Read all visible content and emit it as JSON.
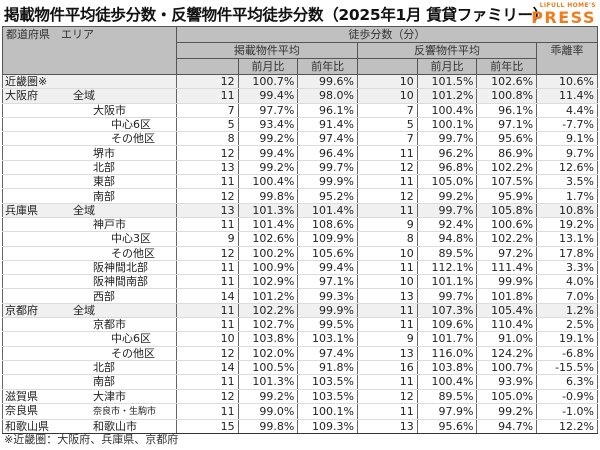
{
  "header": {
    "title": "掲載物件平均徒歩分数・反響物件平均徒歩分数（2025年1月 賃貸ファミリー）",
    "logo_small": "LIFULL HOME'S",
    "logo_big": "PRESS",
    "brand_color": "#f07c1e"
  },
  "table": {
    "headers": {
      "area": "都道府県　エリア",
      "walk_minutes": "徒歩分数（分）",
      "listing_avg": "掲載物件平均",
      "response_avg": "反響物件平均",
      "divergence": "乖離率",
      "mom": "前月比",
      "yoy": "前年比",
      "mom2": "前月比",
      "yoy2": "前年比"
    },
    "rows": [
      {
        "pref": "近畿圏※",
        "area": "",
        "level": 0,
        "l_min": "12",
        "l_mom": "100.7%",
        "l_yoy": "99.6%",
        "r_min": "10",
        "r_mom": "101.5%",
        "r_yoy": "102.6%",
        "div": "10.6%"
      },
      {
        "pref": "大阪府",
        "area": "全域",
        "level": 1,
        "l_min": "11",
        "l_mom": "99.4%",
        "l_yoy": "98.0%",
        "r_min": "10",
        "r_mom": "101.2%",
        "r_yoy": "100.8%",
        "div": "11.4%"
      },
      {
        "pref": "",
        "area": "大阪市",
        "level": 2,
        "l_min": "7",
        "l_mom": "97.7%",
        "l_yoy": "96.1%",
        "r_min": "7",
        "r_mom": "100.4%",
        "r_yoy": "96.1%",
        "div": "4.4%"
      },
      {
        "pref": "",
        "area": "中心6区",
        "level": 3,
        "l_min": "5",
        "l_mom": "93.4%",
        "l_yoy": "91.4%",
        "r_min": "5",
        "r_mom": "100.1%",
        "r_yoy": "97.1%",
        "div": "-7.7%"
      },
      {
        "pref": "",
        "area": "その他区",
        "level": 3,
        "l_min": "8",
        "l_mom": "99.2%",
        "l_yoy": "97.4%",
        "r_min": "7",
        "r_mom": "99.7%",
        "r_yoy": "95.6%",
        "div": "9.1%"
      },
      {
        "pref": "",
        "area": "堺市",
        "level": 2,
        "l_min": "12",
        "l_mom": "99.4%",
        "l_yoy": "96.4%",
        "r_min": "11",
        "r_mom": "96.2%",
        "r_yoy": "86.9%",
        "div": "9.7%"
      },
      {
        "pref": "",
        "area": "北部",
        "level": 2,
        "l_min": "13",
        "l_mom": "99.2%",
        "l_yoy": "99.7%",
        "r_min": "12",
        "r_mom": "96.8%",
        "r_yoy": "102.2%",
        "div": "12.6%"
      },
      {
        "pref": "",
        "area": "東部",
        "level": 2,
        "l_min": "11",
        "l_mom": "100.4%",
        "l_yoy": "99.9%",
        "r_min": "11",
        "r_mom": "105.0%",
        "r_yoy": "107.5%",
        "div": "3.5%"
      },
      {
        "pref": "",
        "area": "南部",
        "level": 2,
        "l_min": "12",
        "l_mom": "99.8%",
        "l_yoy": "95.2%",
        "r_min": "12",
        "r_mom": "99.2%",
        "r_yoy": "95.9%",
        "div": "1.7%"
      },
      {
        "pref": "兵庫県",
        "area": "全域",
        "level": 1,
        "l_min": "13",
        "l_mom": "101.3%",
        "l_yoy": "101.4%",
        "r_min": "11",
        "r_mom": "99.7%",
        "r_yoy": "105.8%",
        "div": "10.8%"
      },
      {
        "pref": "",
        "area": "神戸市",
        "level": 2,
        "l_min": "11",
        "l_mom": "101.4%",
        "l_yoy": "108.6%",
        "r_min": "9",
        "r_mom": "92.4%",
        "r_yoy": "100.6%",
        "div": "19.2%"
      },
      {
        "pref": "",
        "area": "中心3区",
        "level": 3,
        "l_min": "9",
        "l_mom": "102.6%",
        "l_yoy": "109.9%",
        "r_min": "8",
        "r_mom": "94.8%",
        "r_yoy": "102.2%",
        "div": "13.1%"
      },
      {
        "pref": "",
        "area": "その他区",
        "level": 3,
        "l_min": "12",
        "l_mom": "100.2%",
        "l_yoy": "105.6%",
        "r_min": "10",
        "r_mom": "89.5%",
        "r_yoy": "97.2%",
        "div": "17.8%"
      },
      {
        "pref": "",
        "area": "阪神間北部",
        "level": 2,
        "l_min": "11",
        "l_mom": "100.9%",
        "l_yoy": "99.4%",
        "r_min": "11",
        "r_mom": "112.1%",
        "r_yoy": "111.4%",
        "div": "3.3%"
      },
      {
        "pref": "",
        "area": "阪神間南部",
        "level": 2,
        "l_min": "11",
        "l_mom": "102.9%",
        "l_yoy": "97.1%",
        "r_min": "10",
        "r_mom": "101.1%",
        "r_yoy": "99.9%",
        "div": "4.0%"
      },
      {
        "pref": "",
        "area": "西部",
        "level": 2,
        "l_min": "14",
        "l_mom": "101.2%",
        "l_yoy": "99.3%",
        "r_min": "13",
        "r_mom": "99.7%",
        "r_yoy": "101.8%",
        "div": "7.0%"
      },
      {
        "pref": "京都府",
        "area": "全域",
        "level": 1,
        "l_min": "11",
        "l_mom": "102.2%",
        "l_yoy": "99.9%",
        "r_min": "11",
        "r_mom": "107.3%",
        "r_yoy": "105.4%",
        "div": "1.2%"
      },
      {
        "pref": "",
        "area": "京都市",
        "level": 2,
        "l_min": "11",
        "l_mom": "102.7%",
        "l_yoy": "99.5%",
        "r_min": "11",
        "r_mom": "109.6%",
        "r_yoy": "110.4%",
        "div": "2.5%"
      },
      {
        "pref": "",
        "area": "中心6区",
        "level": 3,
        "l_min": "10",
        "l_mom": "103.8%",
        "l_yoy": "103.1%",
        "r_min": "9",
        "r_mom": "101.7%",
        "r_yoy": "91.0%",
        "div": "19.1%"
      },
      {
        "pref": "",
        "area": "その他区",
        "level": 3,
        "l_min": "12",
        "l_mom": "102.0%",
        "l_yoy": "97.4%",
        "r_min": "13",
        "r_mom": "116.0%",
        "r_yoy": "124.2%",
        "div": "-6.8%"
      },
      {
        "pref": "",
        "area": "北部",
        "level": 2,
        "l_min": "14",
        "l_mom": "100.5%",
        "l_yoy": "91.8%",
        "r_min": "16",
        "r_mom": "103.8%",
        "r_yoy": "100.7%",
        "div": "-15.5%"
      },
      {
        "pref": "",
        "area": "南部",
        "level": 2,
        "l_min": "11",
        "l_mom": "101.3%",
        "l_yoy": "103.5%",
        "r_min": "11",
        "r_mom": "100.4%",
        "r_yoy": "93.9%",
        "div": "6.3%"
      },
      {
        "pref": "滋賀県",
        "area": "大津市",
        "level": 2,
        "l_min": "12",
        "l_mom": "99.2%",
        "l_yoy": "103.5%",
        "r_min": "12",
        "r_mom": "89.5%",
        "r_yoy": "105.0%",
        "div": "-0.9%"
      },
      {
        "pref": "奈良県",
        "area": "奈良市・生駒市",
        "level": 2,
        "l_min": "11",
        "l_mom": "99.0%",
        "l_yoy": "100.1%",
        "r_min": "11",
        "r_mom": "97.9%",
        "r_yoy": "99.2%",
        "div": "-1.0%"
      },
      {
        "pref": "和歌山県",
        "area": "和歌山市",
        "level": 2,
        "l_min": "15",
        "l_mom": "99.8%",
        "l_yoy": "109.3%",
        "r_min": "13",
        "r_mom": "95.6%",
        "r_yoy": "94.7%",
        "div": "12.2%"
      }
    ]
  },
  "footnote": "※近畿圏：大阪府、兵庫県、京都府"
}
